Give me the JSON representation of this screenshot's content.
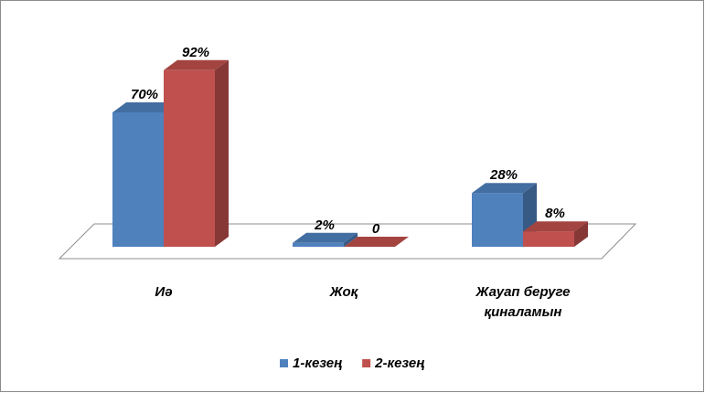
{
  "chart_data": {
    "type": "bar3d",
    "categories": [
      "Иә",
      "Жоқ",
      "Жауап беруге қиналамын"
    ],
    "series": [
      {
        "name": "1-кезең",
        "color": "#4f81bd",
        "values": [
          70,
          2,
          28
        ],
        "value_labels": [
          "70%",
          "2%",
          "28%"
        ]
      },
      {
        "name": "2-кезең",
        "color": "#c0504d",
        "values": [
          92,
          0,
          8
        ],
        "value_labels": [
          "92%",
          "0",
          "8%"
        ]
      }
    ],
    "legend": "bottom"
  }
}
